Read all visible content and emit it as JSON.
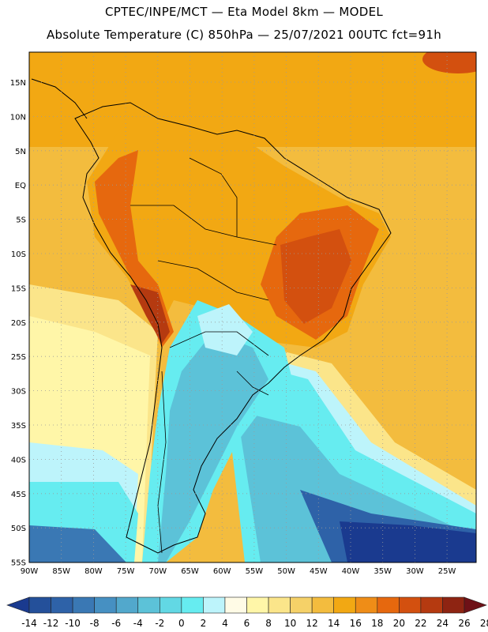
{
  "header": {
    "line1": "CPTEC/INPE/MCT —  Eta Model 8km — MODEL",
    "line2": "Absolute Temperature (C) 850hPa — 25/07/2021 00UTC fct=91h"
  },
  "axes": {
    "lat_labels": [
      "15N",
      "10N",
      "5N",
      "EQ",
      "5S",
      "10S",
      "15S",
      "20S",
      "25S",
      "30S",
      "35S",
      "40S",
      "45S",
      "50S",
      "55S"
    ],
    "lon_labels": [
      "90W",
      "85W",
      "80W",
      "75W",
      "70W",
      "65W",
      "60W",
      "55W",
      "50W",
      "45W",
      "40W",
      "35W",
      "30W",
      "25W"
    ]
  },
  "colorbar": {
    "labels": [
      "-14",
      "-12",
      "-10",
      "-8",
      "-6",
      "-4",
      "-2",
      "0",
      "2",
      "4",
      "6",
      "8",
      "10",
      "12",
      "14",
      "16",
      "18",
      "20",
      "22",
      "24",
      "26",
      "28"
    ],
    "colors": [
      "#1a3a8f",
      "#24509a",
      "#2e62a8",
      "#3a78b4",
      "#4690c2",
      "#52a8cc",
      "#5cc2d8",
      "#62d8e4",
      "#66ecf0",
      "#bdf4fb",
      "#fffbe6",
      "#fff6a8",
      "#fbe58a",
      "#f5d168",
      "#f3bc3e",
      "#f2a813",
      "#ef8d17",
      "#e6680e",
      "#d3500f",
      "#b53a10",
      "#8e2412",
      "#6e1117"
    ]
  }
}
